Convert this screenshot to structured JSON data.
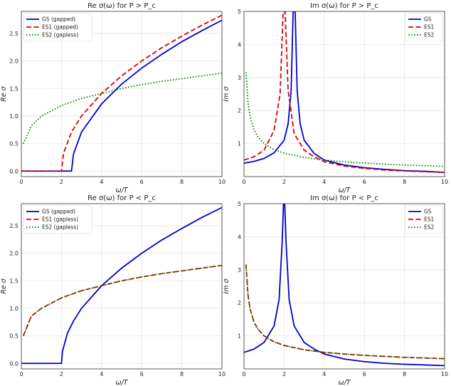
{
  "chart_data": [
    {
      "id": "re_above",
      "type": "line",
      "title": "Re σ(ω) for P > P_c",
      "xlabel": "ω/T",
      "ylabel": "Re σ",
      "xlim": [
        0,
        10
      ],
      "ylim": [
        -0.1,
        2.9
      ],
      "xticks": [
        0,
        2,
        4,
        6,
        8,
        10
      ],
      "yticks": [
        0.0,
        0.5,
        1.0,
        1.5,
        2.0,
        2.5
      ],
      "grid": true,
      "legend_position": "top-left",
      "series": [
        {
          "name": "GS (gapped)",
          "color": "#0000cc",
          "style": "solid",
          "x": [
            0,
            1,
            2,
            2.5,
            2.6,
            3,
            4,
            5,
            6,
            7,
            8,
            9,
            10
          ],
          "y": [
            0,
            0,
            0,
            0,
            0.31,
            0.71,
            1.22,
            1.58,
            1.87,
            2.12,
            2.35,
            2.55,
            2.74
          ]
        },
        {
          "name": "ES1 (gapped)",
          "color": "#dd0000",
          "style": "dashed",
          "x": [
            0,
            1,
            2,
            2.1,
            2.5,
            3,
            4,
            5,
            6,
            7,
            8,
            9,
            10
          ],
          "y": [
            0,
            0,
            0,
            0.32,
            0.71,
            1.0,
            1.41,
            1.73,
            2.0,
            2.24,
            2.45,
            2.65,
            2.83
          ]
        },
        {
          "name": "ES2 (gapless)",
          "color": "#008800",
          "style": "dotted",
          "x": [
            0.1,
            0.5,
            1,
            2,
            3,
            4,
            5,
            6,
            7,
            8,
            9,
            10
          ],
          "y": [
            0.5,
            0.82,
            1.0,
            1.19,
            1.32,
            1.41,
            1.5,
            1.57,
            1.63,
            1.68,
            1.73,
            1.78
          ]
        }
      ]
    },
    {
      "id": "im_above",
      "type": "line",
      "title": "Im σ(ω) for P > P_c",
      "xlabel": "ω/T",
      "ylabel": "Im σ",
      "xlim": [
        0,
        10
      ],
      "ylim": [
        0,
        5
      ],
      "xticks": [
        0,
        2,
        4,
        6,
        8,
        10
      ],
      "yticks": [
        1,
        2,
        3,
        4,
        5
      ],
      "grid": true,
      "legend_position": "top-right",
      "series": [
        {
          "name": "GS",
          "color": "#0000cc",
          "style": "solid",
          "x": [
            0,
            0.5,
            1,
            1.5,
            2,
            2.2,
            2.35,
            2.45,
            2.55,
            2.65,
            2.8,
            3,
            3.5,
            4,
            5,
            6,
            7,
            8,
            9,
            10
          ],
          "y": [
            0.41,
            0.46,
            0.55,
            0.72,
            1.1,
            1.6,
            2.6,
            5.0,
            5.0,
            2.6,
            1.6,
            1.1,
            0.7,
            0.5,
            0.35,
            0.27,
            0.22,
            0.18,
            0.16,
            0.13
          ]
        },
        {
          "name": "ES1",
          "color": "#dd0000",
          "style": "dashed",
          "x": [
            0,
            0.5,
            1,
            1.5,
            1.8,
            1.95,
            2.05,
            2.2,
            2.5,
            3,
            3.5,
            4,
            5,
            6,
            7,
            8,
            9,
            10
          ],
          "y": [
            0.5,
            0.6,
            0.8,
            1.4,
            2.5,
            5.0,
            5.0,
            2.6,
            1.3,
            0.8,
            0.6,
            0.45,
            0.32,
            0.25,
            0.2,
            0.17,
            0.15,
            0.13
          ]
        },
        {
          "name": "ES2",
          "color": "#008800",
          "style": "dotted",
          "x": [
            0.1,
            0.2,
            0.3,
            0.5,
            0.7,
            1,
            1.5,
            2,
            3,
            4,
            5,
            6,
            7,
            8,
            9,
            10
          ],
          "y": [
            3.16,
            2.24,
            1.83,
            1.41,
            1.2,
            1.0,
            0.82,
            0.71,
            0.58,
            0.5,
            0.45,
            0.41,
            0.38,
            0.35,
            0.33,
            0.31
          ]
        }
      ]
    },
    {
      "id": "re_below",
      "type": "line",
      "title": "Re σ(ω) for P < P_c",
      "xlabel": "ω/T",
      "ylabel": "Re σ",
      "xlim": [
        0,
        10
      ],
      "ylim": [
        -0.1,
        2.9
      ],
      "xticks": [
        0,
        2,
        4,
        6,
        8,
        10
      ],
      "yticks": [
        0.0,
        0.5,
        1.0,
        1.5,
        2.0,
        2.5
      ],
      "grid": true,
      "legend_position": "top-left",
      "series": [
        {
          "name": "GS (gapped)",
          "color": "#0000cc",
          "style": "solid",
          "x": [
            0,
            1,
            2,
            2.05,
            2.3,
            2.6,
            3,
            4,
            5,
            6,
            7,
            8,
            9,
            10
          ],
          "y": [
            0,
            0,
            0,
            0.22,
            0.55,
            0.77,
            1.0,
            1.41,
            1.73,
            2.0,
            2.24,
            2.45,
            2.65,
            2.83
          ]
        },
        {
          "name": "ES1 (gapless)",
          "color": "#dd0000",
          "style": "dashed",
          "x": [
            0.1,
            0.5,
            1,
            2,
            3,
            4,
            5,
            6,
            7,
            8,
            9,
            10
          ],
          "y": [
            0.5,
            0.86,
            1.0,
            1.19,
            1.32,
            1.41,
            1.5,
            1.57,
            1.63,
            1.68,
            1.73,
            1.78
          ]
        },
        {
          "name": "ES2 (gapless)",
          "color": "#008800",
          "style": "dotted",
          "x": [
            0.1,
            0.5,
            1,
            2,
            3,
            4,
            5,
            6,
            7,
            8,
            9,
            10
          ],
          "y": [
            0.5,
            0.86,
            1.0,
            1.19,
            1.32,
            1.41,
            1.5,
            1.57,
            1.63,
            1.68,
            1.73,
            1.78
          ]
        }
      ]
    },
    {
      "id": "im_below",
      "type": "line",
      "title": "Im σ(ω) for P < P_c",
      "xlabel": "ω/T",
      "ylabel": "Im σ",
      "xlim": [
        0,
        10
      ],
      "ylim": [
        0,
        5
      ],
      "xticks": [
        0,
        2,
        4,
        6,
        8,
        10
      ],
      "yticks": [
        1,
        2,
        3,
        4,
        5
      ],
      "grid": true,
      "legend_position": "top-right",
      "series": [
        {
          "name": "GS",
          "color": "#0000cc",
          "style": "solid",
          "x": [
            0,
            0.5,
            1,
            1.5,
            1.75,
            1.9,
            1.97,
            2.03,
            2.1,
            2.25,
            2.5,
            3,
            3.5,
            4,
            5,
            6,
            7,
            8,
            9,
            10
          ],
          "y": [
            0.5,
            0.6,
            0.8,
            1.3,
            2.1,
            3.8,
            5.0,
            5.0,
            3.8,
            2.1,
            1.3,
            0.8,
            0.6,
            0.45,
            0.3,
            0.22,
            0.17,
            0.14,
            0.12,
            0.1
          ]
        },
        {
          "name": "ES1",
          "color": "#dd0000",
          "style": "dashed",
          "x": [
            0.1,
            0.2,
            0.3,
            0.5,
            0.7,
            1,
            1.5,
            2,
            3,
            4,
            5,
            6,
            7,
            8,
            9,
            10
          ],
          "y": [
            3.16,
            2.24,
            1.83,
            1.41,
            1.2,
            1.0,
            0.82,
            0.71,
            0.58,
            0.5,
            0.45,
            0.41,
            0.38,
            0.35,
            0.33,
            0.31
          ]
        },
        {
          "name": "ES2",
          "color": "#008800",
          "style": "dotted",
          "x": [
            0.1,
            0.2,
            0.3,
            0.5,
            0.7,
            1,
            1.5,
            2,
            3,
            4,
            5,
            6,
            7,
            8,
            9,
            10
          ],
          "y": [
            3.16,
            2.24,
            1.83,
            1.41,
            1.2,
            1.0,
            0.82,
            0.71,
            0.58,
            0.5,
            0.45,
            0.41,
            0.38,
            0.35,
            0.33,
            0.31
          ]
        }
      ]
    }
  ]
}
